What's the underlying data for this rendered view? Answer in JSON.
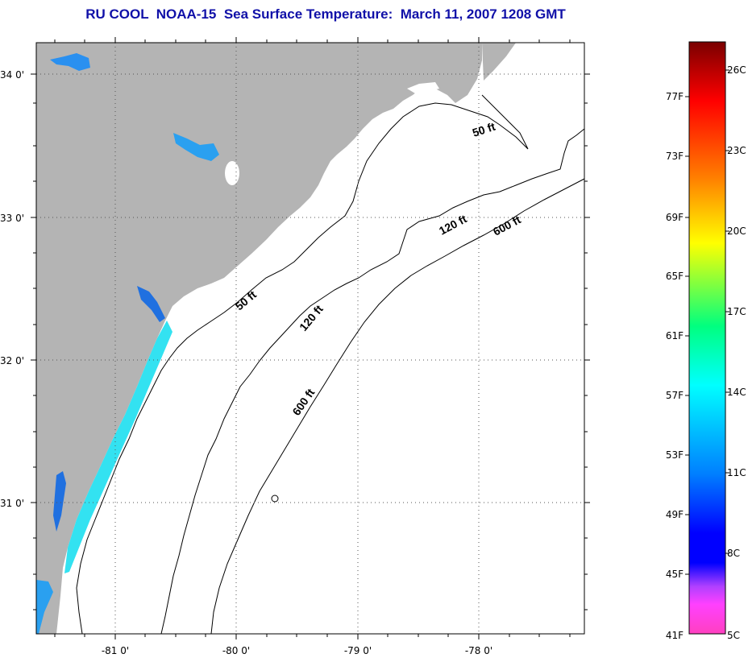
{
  "title": "RU COOL  NOAA-15  Sea Surface Temperature:  March 11, 2007 1208 GMT",
  "map": {
    "lat_labels": [
      "34 0'",
      "33 0'",
      "32 0'",
      "31 0'"
    ],
    "lon_labels": [
      "-81 0'",
      "-80 0'",
      "-79 0'",
      "-78 0'"
    ],
    "contour_labels": [
      "50 ft",
      "120 ft",
      "600 ft",
      "50 ft",
      "120 ft",
      "600 ft"
    ],
    "colors": {
      "land": "#b4b4b4",
      "water": "#ffffff",
      "grid": "#555555"
    }
  },
  "colorbar": {
    "fahrenheit_labels": [
      "77F",
      "73F",
      "69F",
      "65F",
      "61F",
      "57F",
      "53F",
      "49F",
      "45F",
      "41F"
    ],
    "celsius_labels": [
      "26C",
      "23C",
      "20C",
      "17C",
      "14C",
      "11C",
      "8C",
      "5C"
    ],
    "stops": [
      "#7a0000",
      "#ff0000",
      "#ff7f00",
      "#ffff00",
      "#00ff7f",
      "#00ffff",
      "#007fff",
      "#0000ff",
      "#7f3fff",
      "#ff40ff",
      "#ff40c0"
    ]
  }
}
